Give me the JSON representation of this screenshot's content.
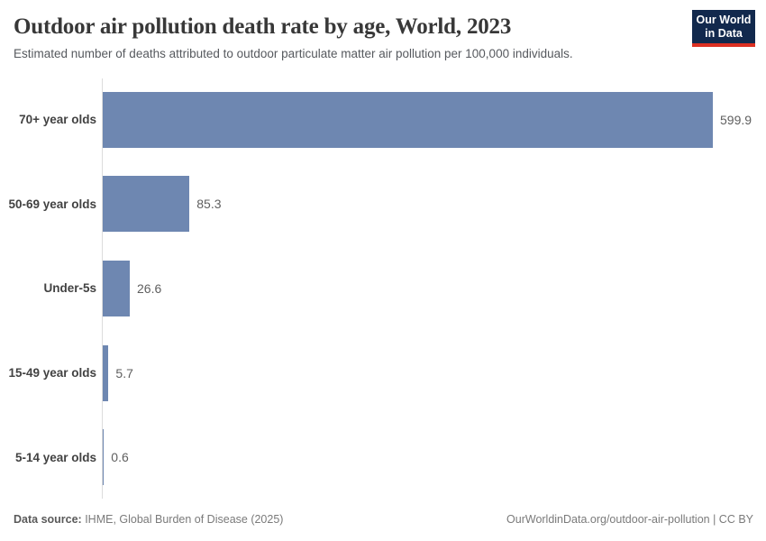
{
  "header": {
    "title": "Outdoor air pollution death rate by age, World, 2023",
    "subtitle": "Estimated number of deaths attributed to outdoor particulate matter air pollution per 100,000 individuals.",
    "logo": {
      "line1": "Our World",
      "line2": "in Data",
      "bg_color": "#12294d",
      "accent_color": "#dc3022"
    }
  },
  "chart_data": {
    "type": "bar",
    "orientation": "horizontal",
    "title": "Outdoor air pollution death rate by age, World, 2023",
    "xlabel": "",
    "ylabel": "",
    "categories": [
      "70+ year olds",
      "50-69 year olds",
      "Under-5s",
      "15-49 year olds",
      "5-14 year olds"
    ],
    "values": [
      599.9,
      85.3,
      26.6,
      5.7,
      0.6
    ],
    "value_labels": [
      "599.9",
      "85.3",
      "26.6",
      "5.7",
      "0.6"
    ],
    "xlim": [
      0,
      600
    ],
    "grid": false,
    "legend": "none",
    "bar_color": "#6e87b1"
  },
  "footer": {
    "datasource_label": "Data source:",
    "datasource_value": " IHME, Global Burden of Disease (2025)",
    "credit": "OurWorldinData.org/outdoor-air-pollution | CC BY"
  }
}
